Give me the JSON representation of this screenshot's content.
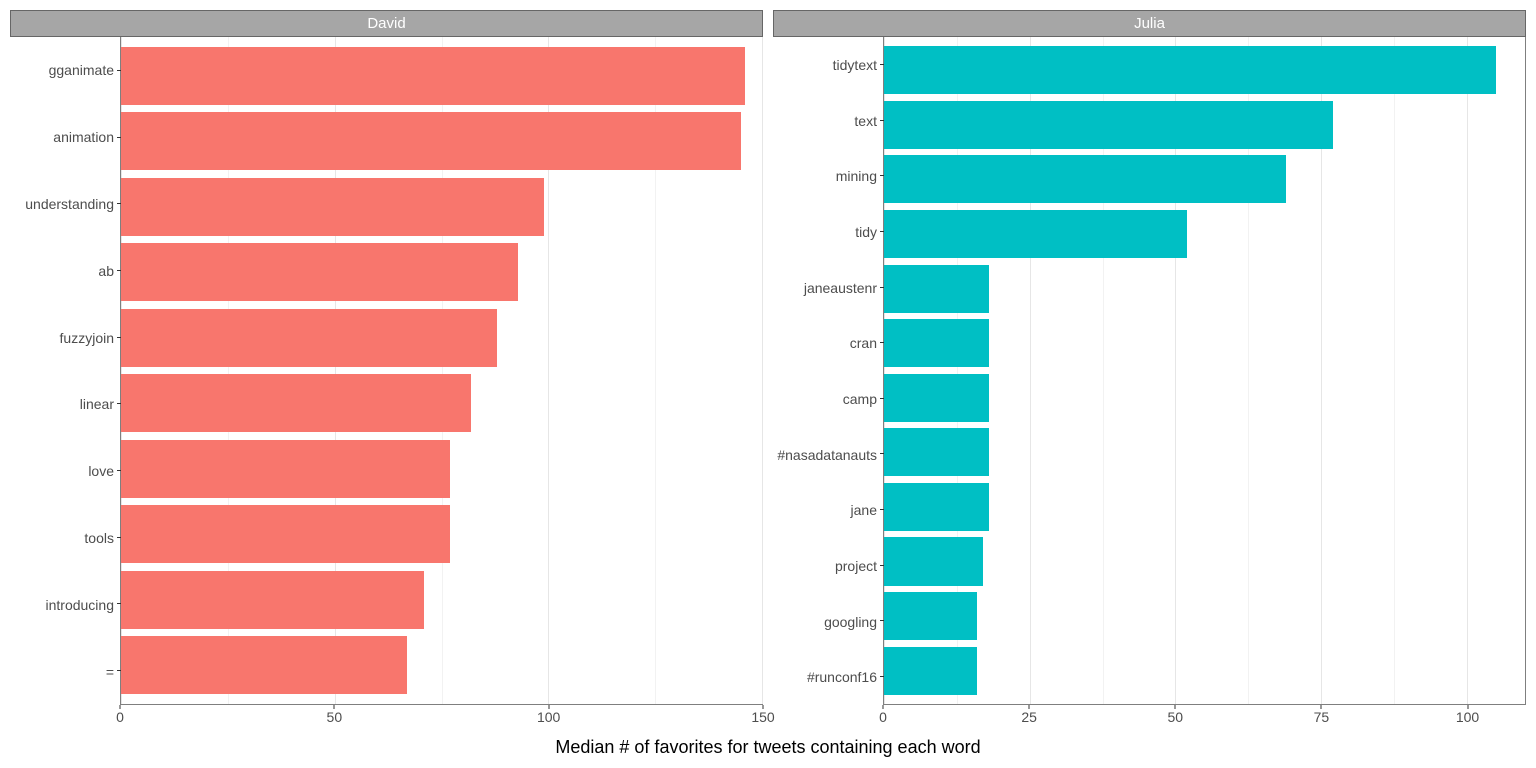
{
  "xlabel": "Median # of favorites for tweets containing each word",
  "background_color": "#ffffff",
  "grid_color_major": "#e6e6e6",
  "grid_color_minor": "#f2f2f2",
  "panel_border_color": "#7f7f7f",
  "strip_bg": "#a6a6a6",
  "strip_fg": "#ffffff",
  "tick_font_color": "#4d4d4d",
  "tick_fontsize": 14,
  "xlabel_fontsize": 18,
  "facets": [
    {
      "title": "David",
      "bar_color": "#f8766d",
      "xlim": [
        0,
        150
      ],
      "xticks": [
        0,
        50,
        100,
        150
      ],
      "xminor": [
        25,
        75,
        125
      ],
      "categories": [
        "gganimate",
        "animation",
        "understanding",
        "ab",
        "fuzzyjoin",
        "linear",
        "love",
        "tools",
        "introducing",
        "="
      ],
      "values": [
        146,
        145,
        99,
        93,
        88,
        82,
        77,
        77,
        71,
        67
      ]
    },
    {
      "title": "Julia",
      "bar_color": "#00bfc4",
      "xlim": [
        0,
        110
      ],
      "xticks": [
        0,
        25,
        50,
        75,
        100
      ],
      "xminor": [
        12.5,
        37.5,
        62.5,
        87.5
      ],
      "categories": [
        "tidytext",
        "text",
        "mining",
        "tidy",
        "janeaustenr",
        "cran",
        "camp",
        "#nasadatanauts",
        "jane",
        "project",
        "googling",
        "#runconf16"
      ],
      "values": [
        105,
        77,
        69,
        52,
        18,
        18,
        18,
        18,
        18,
        17,
        16,
        16
      ]
    }
  ]
}
